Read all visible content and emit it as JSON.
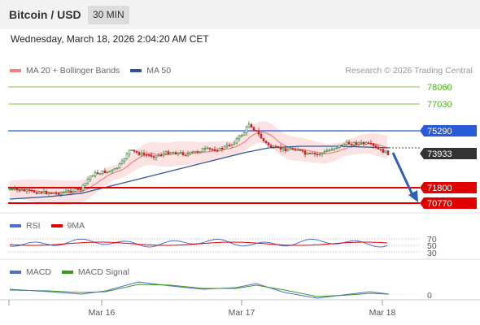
{
  "header": {
    "title": "Bitcoin / USD",
    "timeframe": "30 MIN"
  },
  "datetime": "Wednesday, March 18, 2026 2:04:20 AM CET",
  "legend_main": [
    {
      "label": "MA 20 + Bollinger Bands",
      "color": "#f08080"
    },
    {
      "label": "MA 50",
      "color": "#2f5597"
    }
  ],
  "credit": "Research © 2026 Trading Central",
  "legend_rsi": [
    {
      "label": "RSI",
      "color": "#4a6fd4"
    },
    {
      "label": "9MA",
      "color": "#e00000"
    }
  ],
  "legend_macd": [
    {
      "label": "MACD",
      "color": "#4a6fd4"
    },
    {
      "label": "MACD Signal",
      "color": "#3a9a1a"
    }
  ],
  "price_levels": [
    {
      "label": "78060",
      "color": "#4caf1a",
      "style": "line-text"
    },
    {
      "label": "77030",
      "color": "#4caf1a",
      "style": "line-text"
    },
    {
      "label": "75290",
      "color": "#2a5ad8",
      "style": "box"
    },
    {
      "label": "73933",
      "color": "#333333",
      "style": "box"
    },
    {
      "label": "71800",
      "color": "#e00000",
      "style": "box"
    },
    {
      "label": "70770",
      "color": "#e00000",
      "style": "box"
    }
  ],
  "rsi_levels": [
    "70",
    "50",
    "30"
  ],
  "macd_levels": [
    "0"
  ],
  "x_axis": [
    "Mar 16",
    "Mar 17",
    "Mar 18"
  ]
}
